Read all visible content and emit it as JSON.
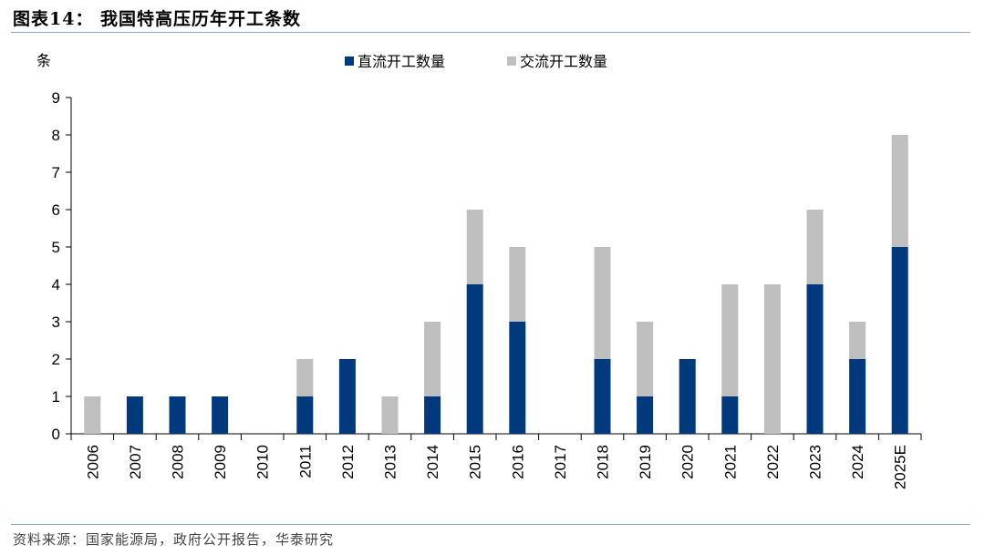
{
  "header": {
    "title": "图表14：  我国特高压历年开工条数"
  },
  "footer": {
    "source": "资料来源：国家能源局，政府公开报告，华泰研究"
  },
  "colors": {
    "dc": "#003a7d",
    "ac": "#bfbfbf",
    "rule": "#8fa7c4"
  },
  "chart_data": {
    "type": "bar",
    "stacked": true,
    "unit_label": "条",
    "categories": [
      "2006",
      "2007",
      "2008",
      "2009",
      "2010",
      "2011",
      "2012",
      "2013",
      "2014",
      "2015",
      "2016",
      "2017",
      "2018",
      "2019",
      "2020",
      "2021",
      "2022",
      "2023",
      "2024",
      "2025E"
    ],
    "series": [
      {
        "name": "直流开工数量",
        "color": "#003a7d",
        "values": [
          0,
          1,
          1,
          1,
          0,
          1,
          2,
          0,
          1,
          4,
          3,
          0,
          2,
          1,
          2,
          1,
          0,
          4,
          2,
          5
        ]
      },
      {
        "name": "交流开工数量",
        "color": "#bfbfbf",
        "values": [
          1,
          0,
          0,
          0,
          0,
          1,
          0,
          1,
          2,
          2,
          2,
          0,
          3,
          2,
          0,
          3,
          4,
          2,
          1,
          3
        ]
      }
    ],
    "ylim": [
      0,
      9
    ],
    "yticks": [
      0,
      1,
      2,
      3,
      4,
      5,
      6,
      7,
      8,
      9
    ],
    "legend_position": "top-center",
    "grid": false
  }
}
